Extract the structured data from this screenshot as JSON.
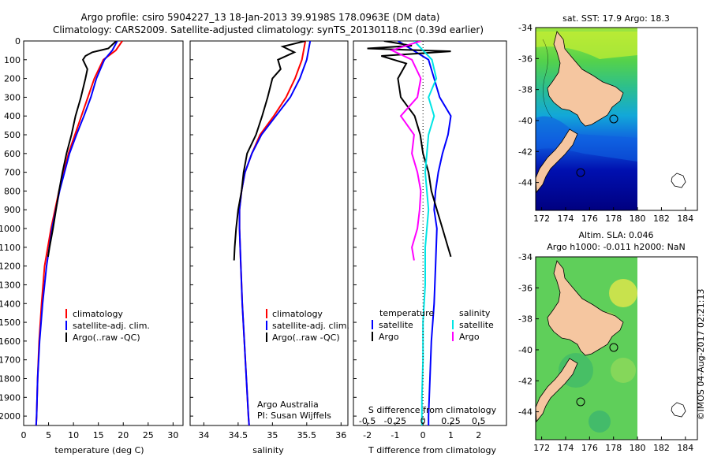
{
  "header": {
    "title_line1": "Argo profile: csiro 5904227_13 18-Jan-2013 39.9198S 178.0963E (DM data)",
    "title_line2": "Climatology: CARS2009. Satellite-adjusted climatology: synTS_20130118.nc (0.39d earlier)"
  },
  "colors": {
    "climatology": "#ff0000",
    "satellite": "#0000ff",
    "argo": "#000000",
    "sal_satellite": "#00e5e5",
    "sal_argo": "#ff00ff",
    "land": "#f5c6a0",
    "deep_water": "#000080"
  },
  "depth_ticks": [
    "0",
    "100",
    "200",
    "300",
    "400",
    "500",
    "600",
    "700",
    "800",
    "900",
    "1000",
    "1100",
    "1200",
    "1300",
    "1400",
    "1500",
    "1600",
    "1700",
    "1800",
    "1900",
    "2000"
  ],
  "chart_data": [
    {
      "type": "line",
      "name": "temperature",
      "xlabel": "temperature (deg C)",
      "ylabel": "depth",
      "xlim": [
        0,
        32
      ],
      "ylim": [
        2050,
        0
      ],
      "xticks": [
        "0",
        "5",
        "10",
        "15",
        "20",
        "25",
        "30"
      ],
      "legend": [
        "climatology",
        "satellite-adj. clim.",
        "Argo(..raw -QC)"
      ],
      "series": [
        {
          "name": "climatology",
          "depth": [
            0,
            50,
            100,
            200,
            300,
            400,
            500,
            600,
            800,
            1000,
            1200,
            1400,
            1600,
            1800,
            2000,
            2050
          ],
          "values": [
            19.8,
            18.5,
            16.0,
            14.2,
            12.9,
            11.6,
            10.3,
            9.0,
            7.1,
            5.5,
            4.2,
            3.6,
            3.1,
            2.8,
            2.6,
            2.5
          ]
        },
        {
          "name": "satellite-adj. clim.",
          "depth": [
            0,
            50,
            100,
            200,
            300,
            400,
            500,
            600,
            800,
            1000,
            1200,
            1400,
            1600,
            1800,
            2000,
            2050
          ],
          "values": [
            18.8,
            17.8,
            16.2,
            14.6,
            13.5,
            12.1,
            10.6,
            9.2,
            7.2,
            5.7,
            4.6,
            3.8,
            3.2,
            2.8,
            2.6,
            2.5
          ]
        },
        {
          "name": "Argo",
          "depth": [
            0,
            40,
            60,
            80,
            100,
            150,
            200,
            300,
            400,
            500,
            600,
            700,
            800,
            900,
            1000,
            1100,
            1150
          ],
          "values": [
            18.6,
            17.0,
            13.8,
            12.4,
            11.9,
            12.8,
            12.4,
            11.5,
            10.4,
            9.6,
            8.6,
            7.8,
            7.1,
            6.5,
            5.9,
            5.2,
            4.9
          ]
        }
      ]
    },
    {
      "type": "line",
      "name": "salinity",
      "xlabel": "salinity",
      "ylabel": "depth",
      "xlim": [
        33.8,
        36.1
      ],
      "ylim": [
        2050,
        0
      ],
      "xticks": [
        "34",
        "34.5",
        "35",
        "35.5",
        "36"
      ],
      "legend": [
        "climatology",
        "satellite-adj. clim.",
        "Argo(..raw -QC)"
      ],
      "annotation": [
        "Argo Australia",
        "PI: Susan Wijffels"
      ],
      "series": [
        {
          "name": "climatology",
          "depth": [
            0,
            100,
            200,
            300,
            400,
            500,
            600,
            700,
            800,
            900,
            1000,
            1200,
            1400,
            1600,
            1800,
            2000,
            2050
          ],
          "values": [
            35.48,
            35.43,
            35.33,
            35.2,
            35.02,
            34.82,
            34.7,
            34.6,
            34.55,
            34.52,
            34.52,
            34.54,
            34.56,
            34.59,
            34.62,
            34.65,
            34.66
          ]
        },
        {
          "name": "satellite-adj. clim.",
          "depth": [
            0,
            100,
            200,
            300,
            400,
            500,
            600,
            700,
            800,
            900,
            1000,
            1200,
            1400,
            1600,
            1800,
            2000,
            2050
          ],
          "values": [
            35.55,
            35.5,
            35.4,
            35.26,
            35.05,
            34.84,
            34.7,
            34.6,
            34.55,
            34.52,
            34.52,
            34.54,
            34.56,
            34.59,
            34.62,
            34.65,
            34.66
          ]
        },
        {
          "name": "Argo",
          "depth": [
            0,
            30,
            60,
            100,
            150,
            200,
            300,
            400,
            500,
            600,
            700,
            800,
            900,
            1000,
            1100,
            1170
          ],
          "values": [
            35.48,
            35.15,
            35.32,
            35.08,
            35.12,
            35.0,
            34.93,
            34.85,
            34.76,
            34.63,
            34.58,
            34.55,
            34.5,
            34.47,
            34.45,
            34.44
          ]
        }
      ]
    },
    {
      "type": "line",
      "name": "difference",
      "xlabel": "T difference from climatology",
      "xlabel_top": "S difference from climatology",
      "ylabel": "depth",
      "xlim": [
        -2.5,
        3.0
      ],
      "ylim": [
        2050,
        0
      ],
      "xticks": [
        "-2",
        "-1",
        "0",
        "1",
        "2"
      ],
      "sticks": [
        "-0.5",
        "-0.25",
        "0",
        "0.25",
        "0.5"
      ],
      "legend_headers": [
        "temperature",
        "salinity"
      ],
      "legend": [
        "satellite",
        "Argo",
        "satellite",
        "Argo"
      ],
      "series": [
        {
          "name": "temperature satellite",
          "depth": [
            0,
            100,
            200,
            300,
            400,
            500,
            600,
            700,
            800,
            900,
            1000,
            1200,
            1400,
            1600,
            1800,
            2000,
            2050
          ],
          "values": [
            -0.9,
            0.2,
            0.4,
            0.6,
            1.0,
            0.9,
            0.7,
            0.55,
            0.45,
            0.4,
            0.5,
            0.45,
            0.4,
            0.3,
            0.25,
            0.2,
            0.2
          ]
        },
        {
          "name": "temperature Argo",
          "depth": [
            0,
            25,
            40,
            55,
            80,
            120,
            200,
            300,
            400,
            500,
            600,
            700,
            800,
            900,
            1000,
            1100,
            1150
          ],
          "values": [
            -1.4,
            -0.4,
            -2.0,
            1.0,
            -1.5,
            -0.6,
            -0.9,
            -0.8,
            -0.3,
            -0.1,
            0.0,
            0.2,
            0.3,
            0.5,
            0.7,
            0.9,
            1.0
          ]
        },
        {
          "name": "salinity satellite",
          "depth": [
            0,
            100,
            200,
            300,
            400,
            500,
            700,
            900,
            1100,
            1300,
            1500,
            1700,
            1900,
            2050
          ],
          "values": [
            -0.08,
            0.08,
            0.12,
            0.05,
            0.1,
            0.05,
            0.02,
            0.05,
            0.02,
            0.02,
            0.0,
            0.0,
            -0.01,
            -0.01
          ]
        },
        {
          "name": "salinity Argo",
          "depth": [
            0,
            50,
            100,
            200,
            300,
            400,
            500,
            600,
            700,
            800,
            900,
            1000,
            1100,
            1170
          ],
          "values": [
            -0.02,
            -0.28,
            -0.1,
            -0.02,
            -0.05,
            -0.2,
            -0.08,
            -0.1,
            -0.05,
            -0.02,
            -0.03,
            -0.05,
            -0.1,
            -0.08
          ]
        }
      ]
    },
    {
      "type": "heatmap",
      "name": "sst-map",
      "title": "sat. SST: 17.9 Argo: 18.3",
      "xlim": [
        171.5,
        185
      ],
      "ylim": [
        -45.8,
        -34
      ],
      "xticks": [
        "172",
        "174",
        "176",
        "178",
        "180",
        "182",
        "184"
      ],
      "yticks": [
        "-34",
        "-36",
        "-38",
        "-40",
        "-42",
        "-44"
      ],
      "float_position": {
        "lon": 178.1,
        "lat": -39.9
      }
    },
    {
      "type": "heatmap",
      "name": "sla-map",
      "title_line1": "Altim. SLA: 0.046",
      "title_line2": "Argo h1000: -0.011 h2000: NaN",
      "xlim": [
        171.5,
        185
      ],
      "ylim": [
        -45.8,
        -34
      ],
      "xticks": [
        "172",
        "174",
        "176",
        "178",
        "180",
        "182",
        "184"
      ],
      "yticks": [
        "-34",
        "-36",
        "-38",
        "-40",
        "-42",
        "-44"
      ],
      "float_position": {
        "lon": 178.1,
        "lat": -39.9
      }
    }
  ],
  "footer": {
    "watermark": "©IMOS 04-Aug-2017 02:21:13"
  }
}
